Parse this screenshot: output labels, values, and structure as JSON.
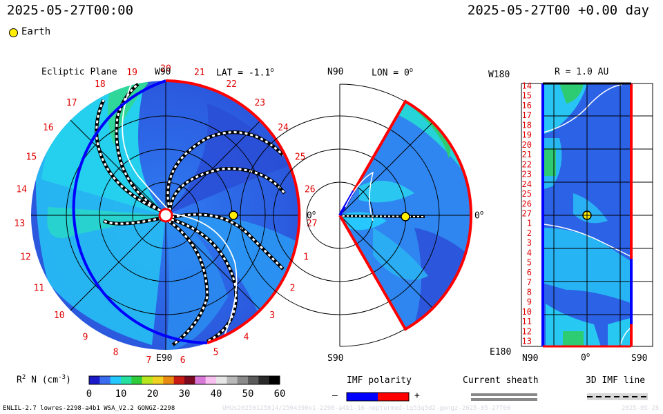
{
  "header": {
    "datetime_left": "2025-05-27T00:00",
    "datetime_right": "2025-05-27T00 +0.00 day",
    "legend_earth": "Earth"
  },
  "ecliptic_panel": {
    "title": "Ecliptic Plane",
    "top_label": "W90",
    "bottom_label": "E90",
    "right_label": "0",
    "lat_label": "LAT = -1.1",
    "degree_mark": "o",
    "carrington_numbers": [
      "20",
      "21",
      "22",
      "23",
      "24",
      "25",
      "26",
      "27",
      "1",
      "2",
      "3",
      "4",
      "5",
      "6",
      "7",
      "8",
      "9",
      "10",
      "11",
      "12",
      "13",
      "14",
      "15",
      "16",
      "17",
      "18",
      "19"
    ]
  },
  "meridional_panel": {
    "top_label": "N90",
    "bottom_label": "S90",
    "right_label": "0",
    "lon_label": "LON = 0",
    "degree_mark": "o"
  },
  "radial_panel": {
    "top_label": "W180",
    "bottom_label": "E180",
    "radius_label": "R = 1.0 AU",
    "x_left_label": "N90",
    "x_mid_label": "0",
    "x_right_label": "S90",
    "degree_mark": "o",
    "rotation_labels": [
      "14",
      "15",
      "16",
      "17",
      "18",
      "19",
      "20",
      "21",
      "22",
      "23",
      "24",
      "25",
      "26",
      "27",
      "1",
      "2",
      "3",
      "4",
      "5",
      "6",
      "7",
      "8",
      "9",
      "10",
      "11",
      "12",
      "13"
    ]
  },
  "colorbar": {
    "label": "R",
    "label_sup": "2",
    "label_unit": " N (cm",
    "label_unit_sup": "-3",
    "label_end": ")",
    "ticks": [
      "0",
      "10",
      "20",
      "30",
      "40",
      "50",
      "60"
    ],
    "range": [
      0,
      60
    ],
    "colors": [
      "#1a1ac8",
      "#3a6cf0",
      "#24c8ff",
      "#26e0a0",
      "#2ecc3a",
      "#b8e61e",
      "#f0d020",
      "#e88a10",
      "#c81a14",
      "#7a0a20",
      "#d878d8",
      "#f8c0f0",
      "#e6e6e6",
      "#b8b8b8",
      "#8a8a8a",
      "#5a5a5a",
      "#2a2a2a",
      "#000000"
    ]
  },
  "legends": {
    "imf_polarity": "IMF polarity",
    "imf_minus": "–",
    "imf_plus": "+",
    "imf_minus_color": "#0000ff",
    "imf_plus_color": "#ff0000",
    "current_sheath": "Current sheath",
    "imf_3d": "3D IMF line"
  },
  "footer": {
    "model_text": "ENLIL-2.7 lowres-2298-a4b1 WSA_V2.2 GONGZ-2298",
    "run_text": "UHUs20250125814/2504390x1-2298-a4b1-16-nopturmed-1g53q5d2-gongz-2025-05-27T00",
    "date_text": "2025-05-28"
  }
}
